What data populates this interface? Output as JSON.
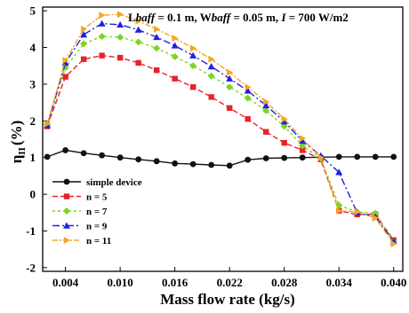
{
  "chart_data": {
    "type": "line",
    "annotation": {
      "parts": [
        {
          "text": "L",
          "italic": false
        },
        {
          "text": "baff",
          "italic": true
        },
        {
          "text": " = 0.1 m, W",
          "italic": false
        },
        {
          "text": "baff",
          "italic": true
        },
        {
          "text": " = 0.05 m, ",
          "italic": false
        },
        {
          "text": "I",
          "italic": true
        },
        {
          "text": " = 700 W/m2",
          "italic": false
        }
      ]
    },
    "xlabel": "Mass flow rate (kg/s)",
    "ylabel_main": "η",
    "ylabel_sub": "II",
    "ylabel_unit": "(%)",
    "xlim": [
      0.0015,
      0.041
    ],
    "ylim": [
      -2.1,
      5.1
    ],
    "xticks": [
      0.004,
      0.01,
      0.016,
      0.022,
      0.028,
      0.034,
      0.04
    ],
    "xtick_labels": [
      "0.004",
      "0.010",
      "0.016",
      "0.022",
      "0.028",
      "0.034",
      "0.040"
    ],
    "yticks": [
      -2,
      -1,
      0,
      1,
      2,
      3,
      4,
      5
    ],
    "ytick_labels": [
      "-2",
      "-1",
      "0",
      "1",
      "2",
      "3",
      "4",
      "5"
    ],
    "legend_position": "bottom-left",
    "x": [
      0.002,
      0.004,
      0.006,
      0.008,
      0.01,
      0.012,
      0.014,
      0.016,
      0.018,
      0.02,
      0.022,
      0.024,
      0.026,
      0.028,
      0.03,
      0.032,
      0.034,
      0.036,
      0.038,
      0.04
    ],
    "series": [
      {
        "name": "simple device",
        "color": "#111111",
        "marker": "circle",
        "dash": "",
        "values": [
          1.02,
          1.2,
          1.12,
          1.06,
          1.0,
          0.95,
          0.9,
          0.84,
          0.82,
          0.8,
          0.78,
          0.94,
          0.98,
          0.99,
          1.0,
          1.01,
          1.02,
          1.02,
          1.02,
          1.02
        ]
      },
      {
        "name": "n = 5",
        "color": "#e8222a",
        "marker": "square",
        "dash": "6,3",
        "values": [
          1.85,
          3.2,
          3.68,
          3.78,
          3.72,
          3.58,
          3.38,
          3.15,
          2.92,
          2.65,
          2.35,
          2.05,
          1.7,
          1.4,
          1.2,
          0.95,
          -0.45,
          -0.55,
          -0.55,
          -1.25
        ]
      },
      {
        "name": "n = 7",
        "color": "#7ed321",
        "marker": "diamond",
        "dash": "3,3",
        "values": [
          1.9,
          3.45,
          4.1,
          4.3,
          4.28,
          4.15,
          3.98,
          3.75,
          3.5,
          3.22,
          2.92,
          2.62,
          2.28,
          1.85,
          1.32,
          0.98,
          -0.3,
          -0.48,
          -0.52,
          -1.28
        ]
      },
      {
        "name": "n = 9",
        "color": "#2121e0",
        "marker": "triangle-up",
        "dash": "8,3,2,3",
        "values": [
          1.88,
          3.58,
          4.35,
          4.65,
          4.62,
          4.48,
          4.28,
          4.05,
          3.78,
          3.48,
          3.15,
          2.82,
          2.42,
          1.98,
          1.45,
          1.05,
          0.6,
          -0.5,
          -0.62,
          -1.28
        ]
      },
      {
        "name": "n = 11",
        "color": "#f5a623",
        "marker": "triangle-right",
        "dash": "6,2,2,2",
        "values": [
          1.92,
          3.65,
          4.5,
          4.88,
          4.9,
          4.72,
          4.5,
          4.25,
          3.98,
          3.68,
          3.32,
          2.92,
          2.52,
          2.05,
          1.52,
          1.0,
          -0.45,
          -0.48,
          -0.65,
          -1.35
        ]
      }
    ]
  }
}
